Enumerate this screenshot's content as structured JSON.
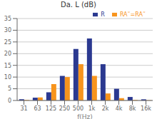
{
  "chart_data": {
    "type": "bar",
    "title": "Da. L (dB)",
    "xlabel": "f(Hz)",
    "categories": [
      "31",
      "63",
      "125",
      "250",
      "500",
      "1k",
      "2k",
      "4k",
      "8k",
      "16k"
    ],
    "series": [
      {
        "name": "R",
        "color": "#2B3990",
        "values": [
          0.5,
          1.2,
          3.5,
          10.5,
          22.0,
          26.5,
          15.5,
          5.0,
          1.5,
          0.5
        ]
      },
      {
        "name": "RA˜=RA˜",
        "color": "#F7941D",
        "values": [
          0.2,
          1.3,
          7.0,
          10.0,
          15.5,
          10.5,
          3.0,
          1.0,
          0.2,
          0.1
        ]
      }
    ],
    "ylim": [
      0,
      35
    ],
    "yticks": [
      0,
      5,
      10,
      15,
      20,
      25,
      30,
      35
    ],
    "grid": true,
    "legend": "upper right"
  }
}
